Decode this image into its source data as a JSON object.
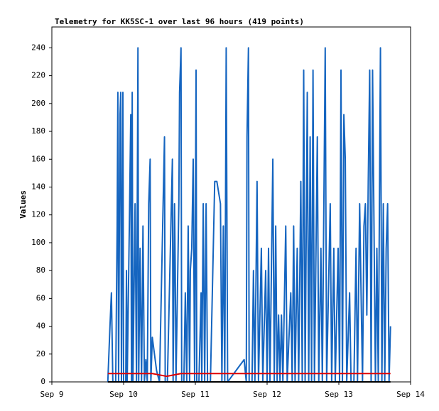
{
  "chart_data": {
    "type": "line",
    "title": "Telemetry for KK5SC-1 over last 96 hours (419 points)",
    "y_label": "Values",
    "xlim": [
      9,
      14
    ],
    "xticks": [
      {
        "value": 9,
        "label": "Sep 9"
      },
      {
        "value": 10,
        "label": "Sep 10"
      },
      {
        "value": 11,
        "label": "Sep 11"
      },
      {
        "value": 12,
        "label": "Sep 12"
      },
      {
        "value": 13,
        "label": "Sep 13"
      },
      {
        "value": 14,
        "label": "Sep 14"
      }
    ],
    "ylim": [
      0,
      255
    ],
    "yticks": [
      0,
      20,
      40,
      60,
      80,
      100,
      120,
      140,
      160,
      180,
      200,
      220,
      240
    ],
    "grid": false,
    "series": [
      {
        "color": "#1565c0",
        "x": [
          9.78,
          9.81,
          9.83,
          9.85,
          9.89,
          9.91,
          9.92,
          9.93,
          9.95,
          9.96,
          9.97,
          9.99,
          10.0,
          10.03,
          10.04,
          10.05,
          10.08,
          10.1,
          10.11,
          10.12,
          10.13,
          10.16,
          10.18,
          10.2,
          10.21,
          10.23,
          10.25,
          10.27,
          10.29,
          10.31,
          10.33,
          10.35,
          10.37,
          10.38,
          10.4,
          10.46,
          10.5,
          10.57,
          10.58,
          10.61,
          10.68,
          10.69,
          10.71,
          10.72,
          10.73,
          10.77,
          10.78,
          10.8,
          10.81,
          10.84,
          10.86,
          10.88,
          10.9,
          10.92,
          10.93,
          10.95,
          10.97,
          10.99,
          11.01,
          11.02,
          11.05,
          11.08,
          11.09,
          11.11,
          11.13,
          11.15,
          11.17,
          11.21,
          11.27,
          11.3,
          11.35,
          11.37,
          11.39,
          11.41,
          11.43,
          11.45,
          11.68,
          11.71,
          11.72,
          11.74,
          11.75,
          11.79,
          11.81,
          11.83,
          11.86,
          11.88,
          11.92,
          11.94,
          11.98,
          12.0,
          12.02,
          12.04,
          12.08,
          12.1,
          12.12,
          12.14,
          12.16,
          12.18,
          12.2,
          12.22,
          12.26,
          12.28,
          12.33,
          12.35,
          12.37,
          12.39,
          12.42,
          12.44,
          12.47,
          12.49,
          12.51,
          12.53,
          12.56,
          12.58,
          12.6,
          12.62,
          12.64,
          12.66,
          12.7,
          12.72,
          12.75,
          12.77,
          12.81,
          12.83,
          12.88,
          12.9,
          12.93,
          12.95,
          12.99,
          13.01,
          13.03,
          13.05,
          13.07,
          13.09,
          13.11,
          13.15,
          13.17,
          13.21,
          13.24,
          13.26,
          13.29,
          13.31,
          13.33,
          13.35,
          13.37,
          13.39,
          13.41,
          13.43,
          13.45,
          13.47,
          13.49,
          13.51,
          13.53,
          13.55,
          13.58,
          13.6,
          13.62,
          13.64,
          13.66,
          13.68,
          13.7,
          13.72
        ],
        "values": [
          0,
          40,
          64,
          0,
          0,
          112,
          208,
          0,
          192,
          208,
          0,
          208,
          0,
          0,
          80,
          0,
          112,
          192,
          0,
          208,
          0,
          128,
          0,
          240,
          0,
          96,
          0,
          112,
          0,
          16,
          0,
          128,
          160,
          0,
          32,
          8,
          0,
          176,
          0,
          0,
          160,
          0,
          128,
          80,
          0,
          128,
          208,
          240,
          0,
          0,
          64,
          0,
          112,
          0,
          80,
          96,
          160,
          0,
          224,
          0,
          0,
          64,
          0,
          128,
          0,
          128,
          0,
          0,
          144,
          144,
          128,
          0,
          112,
          0,
          240,
          0,
          16,
          0,
          176,
          240,
          0,
          0,
          80,
          0,
          144,
          0,
          96,
          0,
          80,
          0,
          96,
          0,
          160,
          0,
          112,
          0,
          48,
          0,
          48,
          0,
          112,
          0,
          64,
          0,
          112,
          0,
          96,
          0,
          144,
          0,
          224,
          0,
          208,
          0,
          176,
          0,
          224,
          0,
          176,
          0,
          96,
          0,
          240,
          0,
          128,
          0,
          96,
          0,
          96,
          0,
          224,
          0,
          192,
          160,
          0,
          64,
          0,
          0,
          96,
          0,
          128,
          64,
          0,
          112,
          128,
          48,
          144,
          224,
          0,
          224,
          112,
          0,
          96,
          0,
          240,
          0,
          128,
          0,
          96,
          128,
          0,
          40
        ]
      },
      {
        "color": "#e00000",
        "x": [
          9.78,
          10.4,
          10.5,
          10.6,
          10.8,
          11.5,
          12.5,
          13.72
        ],
        "values": [
          6,
          6,
          5,
          4,
          6,
          6,
          6,
          6
        ]
      },
      {
        "color": "#000000",
        "x": [
          9.78,
          13.72
        ],
        "values": [
          0,
          0
        ]
      }
    ]
  }
}
